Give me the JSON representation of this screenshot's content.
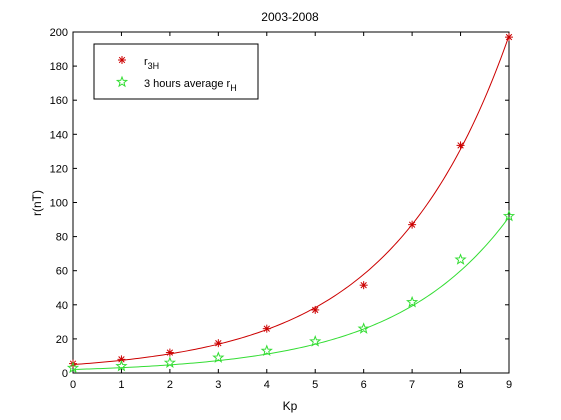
{
  "chart_data": {
    "type": "scatter",
    "title": "2003-2008",
    "xlabel": "Kp",
    "ylabel": "r(nT)",
    "xlim": [
      0,
      9
    ],
    "ylim": [
      0,
      200
    ],
    "x_ticks": [
      "0",
      "1",
      "2",
      "3",
      "4",
      "5",
      "6",
      "7",
      "8",
      "9"
    ],
    "y_ticks": [
      "0",
      "20",
      "40",
      "60",
      "80",
      "100",
      "120",
      "140",
      "160",
      "180",
      "200"
    ],
    "grid": false,
    "legend_position": "top-left",
    "series": [
      {
        "name": "r3H",
        "legend_main": "r",
        "legend_sub": "3H",
        "marker": "asterisk",
        "color": "#cc0000",
        "x": [
          0,
          1,
          2,
          3,
          4,
          5,
          6,
          7,
          8,
          9
        ],
        "y": [
          5.5,
          8,
          12,
          17.5,
          26,
          37,
          51.5,
          87,
          133.5,
          197
        ],
        "fit": {
          "model": "exponential",
          "a": 4.94,
          "b": 0.41
        }
      },
      {
        "name": "3 hours average rH",
        "legend_main": "3 hours average r",
        "legend_sub": "H",
        "marker": "pentagram",
        "color": "#33dd33",
        "x": [
          0,
          1,
          2,
          3,
          4,
          5,
          6,
          7,
          8,
          9
        ],
        "y": [
          3,
          4,
          6,
          9,
          13,
          18.5,
          26,
          41.5,
          66.5,
          92
        ],
        "fit": {
          "model": "exponential",
          "a": 2.05,
          "b": 0.422
        }
      }
    ]
  }
}
